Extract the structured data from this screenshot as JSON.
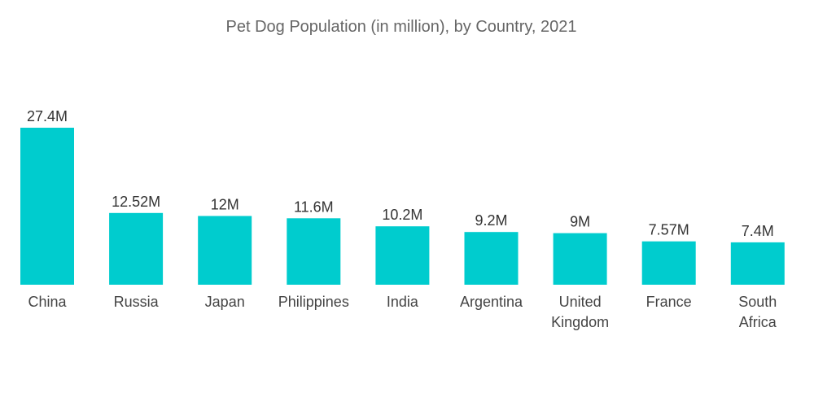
{
  "chart_data": {
    "type": "bar",
    "title": "Pet Dog Population (in million), by Country, 2021",
    "categories": [
      "China",
      "Russia",
      "Japan",
      "Philippines",
      "India",
      "Argentina",
      "United Kingdom",
      "France",
      "South Africa"
    ],
    "values": [
      27.4,
      12.52,
      12,
      11.6,
      10.2,
      9.2,
      9,
      7.57,
      7.4
    ],
    "value_labels": [
      "27.4M",
      "12.52M",
      "12M",
      "11.6M",
      "10.2M",
      "9.2M",
      "9M",
      "7.57M",
      "7.4M"
    ],
    "xlabel": "",
    "ylabel": "",
    "ylim": [
      0,
      27.4
    ],
    "grid": false,
    "legend": "none",
    "bar_color": "#00CCCE"
  }
}
